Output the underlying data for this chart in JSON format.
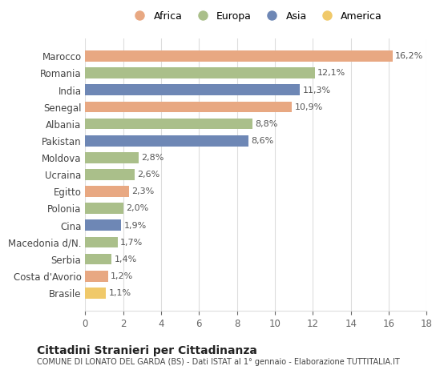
{
  "countries": [
    "Marocco",
    "Romania",
    "India",
    "Senegal",
    "Albania",
    "Pakistan",
    "Moldova",
    "Ucraina",
    "Egitto",
    "Polonia",
    "Cina",
    "Macedonia d/N.",
    "Serbia",
    "Costa d'Avorio",
    "Brasile"
  ],
  "values": [
    16.2,
    12.1,
    11.3,
    10.9,
    8.8,
    8.6,
    2.8,
    2.6,
    2.3,
    2.0,
    1.9,
    1.7,
    1.4,
    1.2,
    1.1
  ],
  "labels": [
    "16,2%",
    "12,1%",
    "11,3%",
    "10,9%",
    "8,8%",
    "8,6%",
    "2,8%",
    "2,6%",
    "2,3%",
    "2,0%",
    "1,9%",
    "1,7%",
    "1,4%",
    "1,2%",
    "1,1%"
  ],
  "continents": [
    "Africa",
    "Europa",
    "Asia",
    "Africa",
    "Europa",
    "Asia",
    "Europa",
    "Europa",
    "Africa",
    "Europa",
    "Asia",
    "Europa",
    "Europa",
    "Africa",
    "America"
  ],
  "colors": {
    "Africa": "#E8A882",
    "Europa": "#AABF8A",
    "Asia": "#6E87B5",
    "America": "#F0C96A"
  },
  "legend_order": [
    "Africa",
    "Europa",
    "Asia",
    "America"
  ],
  "title": "Cittadini Stranieri per Cittadinanza",
  "subtitle": "COMUNE DI LONATO DEL GARDA (BS) - Dati ISTAT al 1° gennaio - Elaborazione TUTTITALIA.IT",
  "xlim": [
    0,
    18
  ],
  "xticks": [
    0,
    2,
    4,
    6,
    8,
    10,
    12,
    14,
    16,
    18
  ],
  "background_color": "#ffffff",
  "grid_color": "#dddddd"
}
